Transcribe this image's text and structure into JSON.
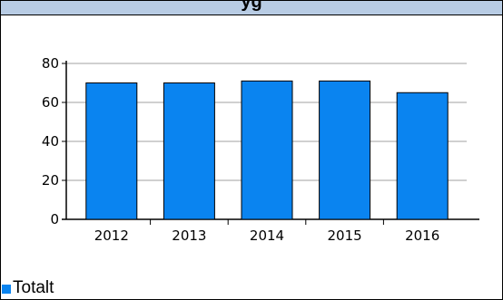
{
  "header": {
    "title": "yg"
  },
  "chart_data": {
    "type": "bar",
    "categories": [
      "2012",
      "2013",
      "2014",
      "2015",
      "2016"
    ],
    "series": [
      {
        "name": "Totalt",
        "values": [
          70,
          70,
          71,
          71,
          65
        ]
      }
    ],
    "title": "",
    "xlabel": "",
    "ylabel": "",
    "ylim": [
      0,
      80
    ],
    "yticks": [
      "0",
      "20",
      "40",
      "60",
      "80"
    ],
    "grid": true,
    "legend": "bottom-left",
    "colors": {
      "bar": "#0a84f0",
      "grid": "#a0a0a0"
    }
  },
  "legend": {
    "label": "Totalt"
  }
}
